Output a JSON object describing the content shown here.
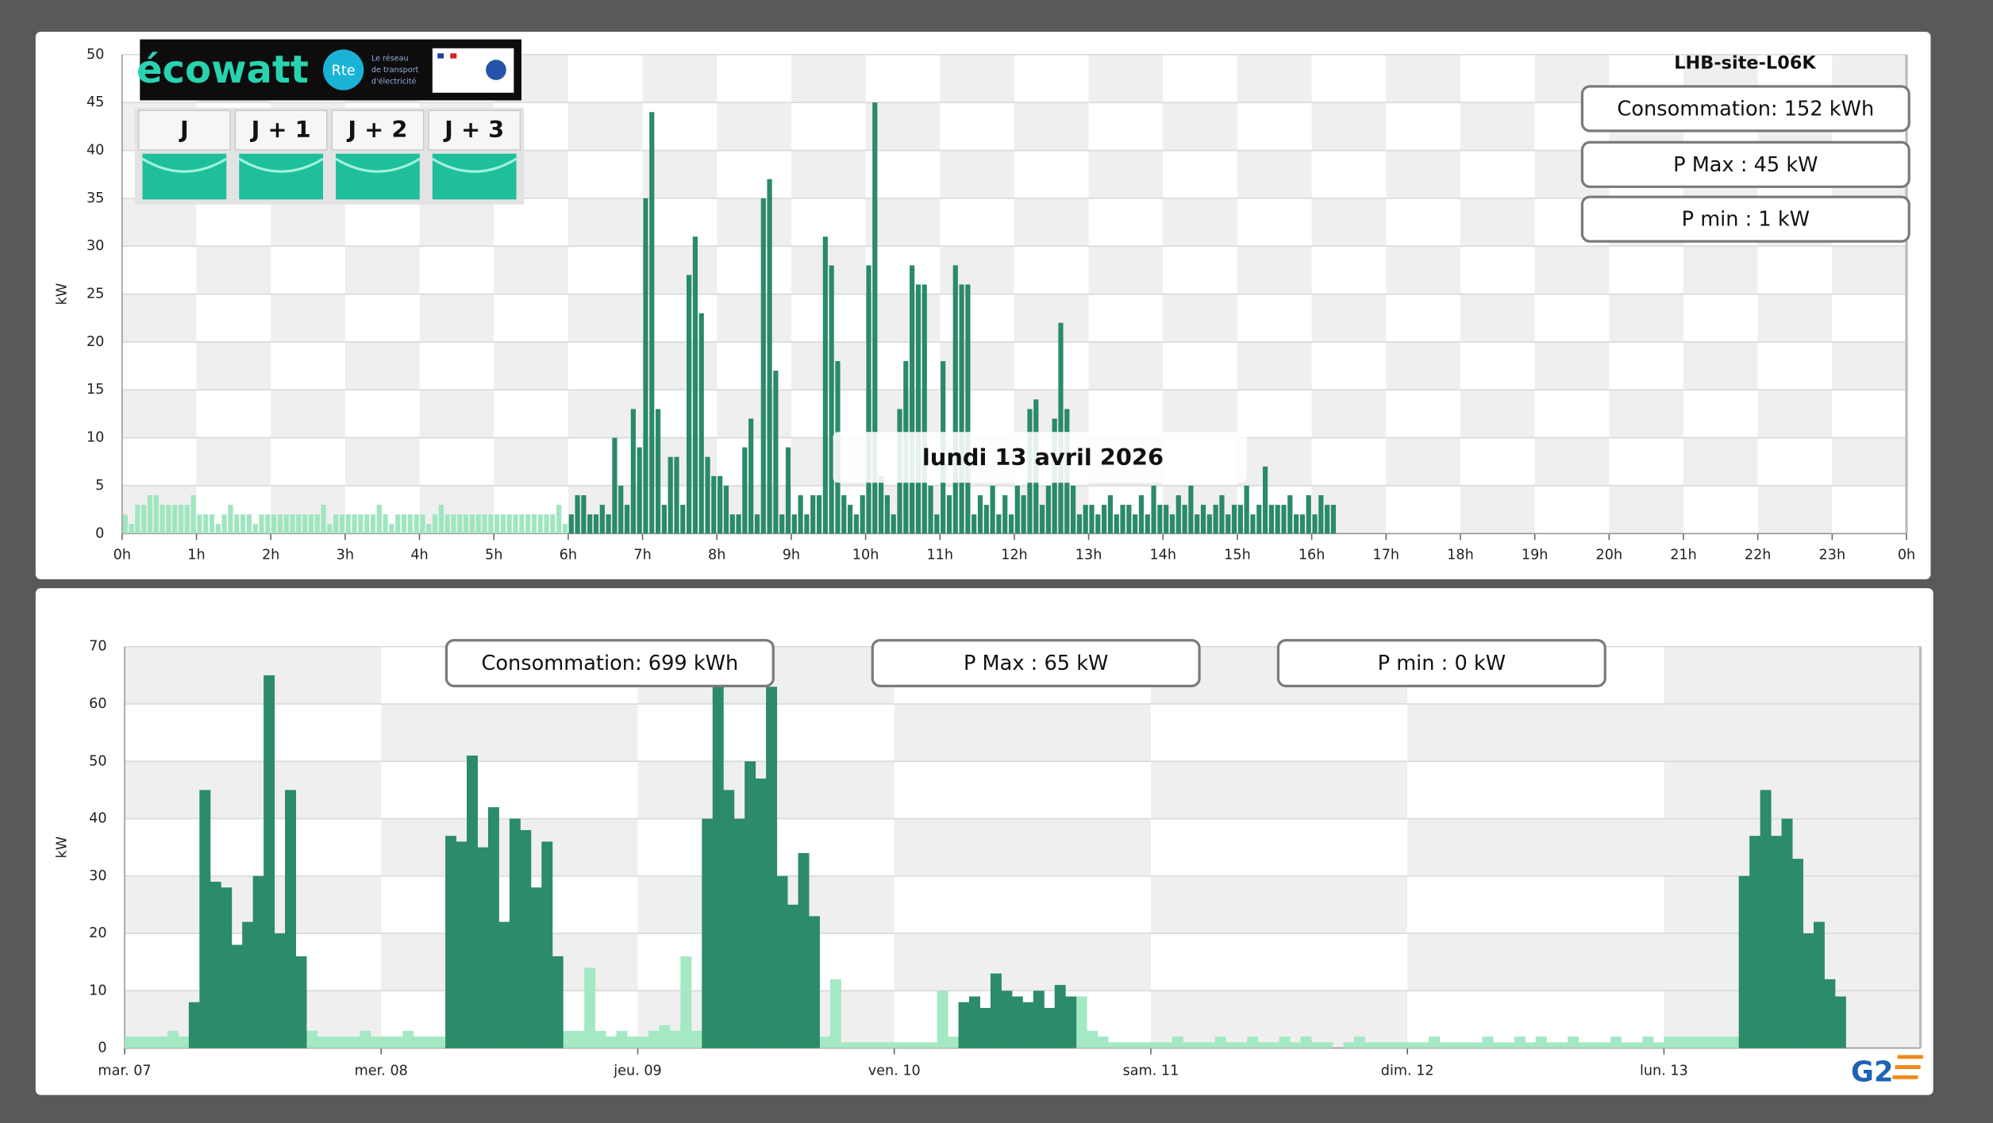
{
  "ecowatt": {
    "logo": "écowatt",
    "rte": "Rte",
    "rte_tagline": [
      "Le réseau",
      "de transport",
      "d'électricité"
    ],
    "days": [
      "J",
      "J + 1",
      "J + 2",
      "J + 3"
    ]
  },
  "g2_logo": "G2",
  "chart_data": [
    {
      "type": "bar",
      "title": "LHB-site-L06K",
      "y_label": "kW",
      "annotations": [
        "Consommation: 152 kWh",
        "P Max :  45 kW",
        "P min : 1 kW"
      ],
      "tooltip": "lundi 13 avril 2026",
      "xlim": [
        0,
        1440
      ],
      "ylim": [
        0,
        50
      ],
      "grid": true,
      "yticks": [
        0,
        5,
        10,
        15,
        20,
        25,
        30,
        35,
        40,
        45,
        50
      ],
      "xticks": [
        {
          "value": 0,
          "label": "0h"
        },
        {
          "value": 60,
          "label": "1h"
        },
        {
          "value": 120,
          "label": "2h"
        },
        {
          "value": 180,
          "label": "3h"
        },
        {
          "value": 240,
          "label": "4h"
        },
        {
          "value": 300,
          "label": "5h"
        },
        {
          "value": 360,
          "label": "6h"
        },
        {
          "value": 420,
          "label": "7h"
        },
        {
          "value": 480,
          "label": "8h"
        },
        {
          "value": 540,
          "label": "9h"
        },
        {
          "value": 600,
          "label": "10h"
        },
        {
          "value": 660,
          "label": "11h"
        },
        {
          "value": 720,
          "label": "12h"
        },
        {
          "value": 780,
          "label": "13h"
        },
        {
          "value": 840,
          "label": "14h"
        },
        {
          "value": 900,
          "label": "15h"
        },
        {
          "value": 960,
          "label": "16h"
        },
        {
          "value": 1020,
          "label": "17h"
        },
        {
          "value": 1080,
          "label": "18h"
        },
        {
          "value": 1140,
          "label": "19h"
        },
        {
          "value": 1200,
          "label": "20h"
        },
        {
          "value": 1260,
          "label": "21h"
        },
        {
          "value": 1320,
          "label": "22h"
        },
        {
          "value": 1380,
          "label": "23h"
        },
        {
          "value": 1440,
          "label": "0h"
        }
      ],
      "series": [
        {
          "color": "#9fe6bf",
          "x": [
            0,
            5,
            10,
            15,
            20,
            25,
            30,
            35,
            40,
            45,
            50,
            55,
            60,
            65,
            70,
            75,
            80,
            85,
            90,
            95,
            100,
            105,
            110,
            115,
            120,
            125,
            130,
            135,
            140,
            145,
            150,
            155,
            160,
            165,
            170,
            175,
            180,
            185,
            190,
            195,
            200,
            205,
            210,
            215,
            220,
            225,
            230,
            235,
            240,
            245,
            250,
            255,
            260,
            265,
            270,
            275,
            280,
            285,
            290,
            295,
            300,
            305,
            310,
            315,
            320,
            325,
            330,
            335,
            340,
            345,
            350,
            355
          ],
          "values": [
            2,
            1,
            3,
            3,
            4,
            4,
            3,
            3,
            3,
            3,
            3,
            4,
            2,
            2,
            2,
            1,
            2,
            3,
            2,
            2,
            2,
            1,
            2,
            2,
            2,
            2,
            2,
            2,
            2,
            2,
            2,
            2,
            3,
            1,
            2,
            2,
            2,
            2,
            2,
            2,
            2,
            3,
            2,
            1,
            2,
            2,
            2,
            2,
            2,
            1,
            2,
            3,
            2,
            2,
            2,
            2,
            2,
            2,
            2,
            2,
            2,
            2,
            2,
            2,
            2,
            2,
            2,
            2,
            2,
            2,
            3,
            1
          ]
        },
        {
          "color": "#2a8a69",
          "x": [
            360,
            365,
            370,
            375,
            380,
            385,
            390,
            395,
            400,
            405,
            410,
            415,
            420,
            425,
            430,
            435,
            440,
            445,
            450,
            455,
            460,
            465,
            470,
            475,
            480,
            485,
            490,
            495,
            500,
            505,
            510,
            515,
            520,
            525,
            530,
            535,
            540,
            545,
            550,
            555,
            560,
            565,
            570,
            575,
            580,
            585,
            590,
            595,
            600,
            605,
            610,
            615,
            620,
            625,
            630,
            635,
            640,
            645,
            650,
            655,
            660,
            665,
            670,
            675,
            680,
            685,
            690,
            695,
            700,
            705,
            710,
            715,
            720,
            725,
            730,
            735,
            740,
            745,
            750,
            755,
            760,
            765,
            770,
            775,
            780,
            785,
            790,
            795,
            800,
            805,
            810,
            815,
            820,
            825,
            830,
            835,
            840,
            845,
            850,
            855,
            860,
            865,
            870,
            875,
            880,
            885,
            890,
            895,
            900,
            905,
            910,
            915,
            920,
            925,
            930,
            935,
            940,
            945,
            950,
            955,
            960,
            965,
            970,
            975
          ],
          "values": [
            2,
            4,
            4,
            2,
            2,
            3,
            2,
            10,
            5,
            3,
            13,
            9,
            35,
            44,
            13,
            3,
            8,
            8,
            3,
            27,
            31,
            23,
            8,
            6,
            6,
            5,
            2,
            2,
            9,
            12,
            2,
            35,
            37,
            17,
            2,
            9,
            2,
            4,
            2,
            4,
            4,
            31,
            28,
            18,
            4,
            3,
            2,
            4,
            28,
            45,
            6,
            4,
            2,
            13,
            18,
            28,
            26,
            26,
            5,
            2,
            18,
            4,
            28,
            26,
            26,
            2,
            4,
            3,
            5,
            2,
            4,
            2,
            5,
            4,
            13,
            14,
            3,
            5,
            12,
            22,
            13,
            5,
            2,
            3,
            3,
            2,
            3,
            4,
            2,
            3,
            3,
            2,
            4,
            2,
            5,
            3,
            3,
            2,
            4,
            3,
            5,
            2,
            3,
            2,
            3,
            4,
            2,
            3,
            3,
            5,
            2,
            3,
            7,
            3,
            3,
            3,
            4,
            2,
            2,
            4,
            2,
            4,
            3,
            3
          ]
        }
      ]
    },
    {
      "type": "bar",
      "y_label": "kW",
      "annotations": [
        "Consommation: 699 kWh",
        "P Max :  65 kW",
        "P min : 0 kW"
      ],
      "xlim": [
        0,
        168
      ],
      "ylim": [
        0,
        70
      ],
      "grid": true,
      "yticks": [
        0,
        10,
        20,
        30,
        40,
        50,
        60,
        70
      ],
      "xticks": [
        {
          "value": 0,
          "label": "mar. 07"
        },
        {
          "value": 24,
          "label": "mer. 08"
        },
        {
          "value": 48,
          "label": "jeu. 09"
        },
        {
          "value": 72,
          "label": "ven. 10"
        },
        {
          "value": 96,
          "label": "sam. 11"
        },
        {
          "value": 120,
          "label": "dim. 12"
        },
        {
          "value": 144,
          "label": "lun. 13"
        }
      ],
      "x": [
        0,
        1,
        2,
        3,
        4,
        5,
        6,
        7,
        8,
        9,
        10,
        11,
        12,
        13,
        14,
        15,
        16,
        17,
        18,
        19,
        20,
        21,
        22,
        23,
        24,
        25,
        26,
        27,
        28,
        29,
        30,
        31,
        32,
        33,
        34,
        35,
        36,
        37,
        38,
        39,
        40,
        41,
        42,
        43,
        44,
        45,
        46,
        47,
        48,
        49,
        50,
        51,
        52,
        53,
        54,
        55,
        56,
        57,
        58,
        59,
        60,
        61,
        62,
        63,
        64,
        65,
        66,
        67,
        68,
        69,
        70,
        71,
        72,
        73,
        74,
        75,
        76,
        77,
        78,
        79,
        80,
        81,
        82,
        83,
        84,
        85,
        86,
        87,
        88,
        89,
        90,
        91,
        92,
        93,
        94,
        95,
        96,
        97,
        98,
        99,
        100,
        101,
        102,
        103,
        104,
        105,
        106,
        107,
        108,
        109,
        110,
        111,
        112,
        113,
        114,
        115,
        116,
        117,
        118,
        119,
        120,
        121,
        122,
        123,
        124,
        125,
        126,
        127,
        128,
        129,
        130,
        131,
        132,
        133,
        134,
        135,
        136,
        137,
        138,
        139,
        140,
        141,
        142,
        143,
        144,
        145,
        146,
        147,
        148,
        149,
        150,
        151,
        152,
        153,
        154,
        155,
        156,
        157,
        158,
        159,
        160
      ],
      "series": [
        {
          "color": "#a5e8c4",
          "values": [
            2,
            2,
            2,
            2,
            3,
            2,
            null,
            null,
            null,
            null,
            null,
            null,
            null,
            null,
            null,
            null,
            null,
            3,
            2,
            2,
            2,
            2,
            3,
            2,
            2,
            2,
            3,
            2,
            2,
            2,
            null,
            null,
            null,
            null,
            null,
            null,
            null,
            null,
            null,
            null,
            null,
            3,
            3,
            14,
            3,
            2,
            3,
            2,
            2,
            3,
            4,
            3,
            16,
            3,
            null,
            null,
            null,
            null,
            null,
            null,
            null,
            null,
            null,
            null,
            null,
            2,
            12,
            1,
            1,
            1,
            1,
            1,
            1,
            1,
            1,
            1,
            10,
            2,
            null,
            null,
            null,
            null,
            null,
            null,
            null,
            null,
            null,
            null,
            null,
            9,
            3,
            2,
            1,
            1,
            1,
            1,
            1,
            1,
            2,
            1,
            1,
            1,
            2,
            1,
            1,
            2,
            1,
            1,
            2,
            1,
            2,
            1,
            1,
            0,
            1,
            2,
            1,
            1,
            1,
            1,
            1,
            1,
            2,
            1,
            1,
            1,
            1,
            2,
            1,
            1,
            2,
            1,
            2,
            1,
            1,
            2,
            1,
            1,
            1,
            2,
            1,
            1,
            2,
            1,
            2,
            2,
            2,
            2,
            2,
            2,
            2,
            null,
            null,
            null,
            null,
            null,
            null,
            null,
            null,
            null,
            null
          ]
        },
        {
          "color": "#2c8b68",
          "values": [
            null,
            null,
            null,
            null,
            null,
            null,
            8,
            45,
            29,
            28,
            18,
            22,
            30,
            65,
            20,
            45,
            16,
            null,
            null,
            null,
            null,
            null,
            null,
            null,
            null,
            null,
            null,
            null,
            null,
            null,
            37,
            36,
            51,
            35,
            42,
            22,
            40,
            38,
            28,
            36,
            16,
            null,
            null,
            null,
            null,
            null,
            null,
            null,
            null,
            null,
            null,
            null,
            null,
            null,
            40,
            63,
            45,
            40,
            50,
            47,
            63,
            30,
            25,
            34,
            23,
            null,
            null,
            null,
            null,
            null,
            null,
            null,
            null,
            null,
            null,
            null,
            null,
            null,
            8,
            9,
            7,
            13,
            10,
            9,
            8,
            10,
            7,
            11,
            9,
            null,
            null,
            null,
            null,
            null,
            null,
            null,
            null,
            null,
            null,
            null,
            null,
            null,
            null,
            null,
            null,
            null,
            null,
            null,
            null,
            null,
            null,
            null,
            null,
            null,
            null,
            null,
            null,
            null,
            null,
            null,
            null,
            null,
            null,
            null,
            null,
            null,
            null,
            null,
            null,
            null,
            null,
            null,
            null,
            null,
            null,
            null,
            null,
            null,
            null,
            null,
            null,
            null,
            null,
            null,
            null,
            null,
            null,
            null,
            null,
            null,
            null,
            30,
            37,
            45,
            37,
            40,
            33,
            20,
            22,
            12,
            9
          ]
        }
      ]
    }
  ]
}
